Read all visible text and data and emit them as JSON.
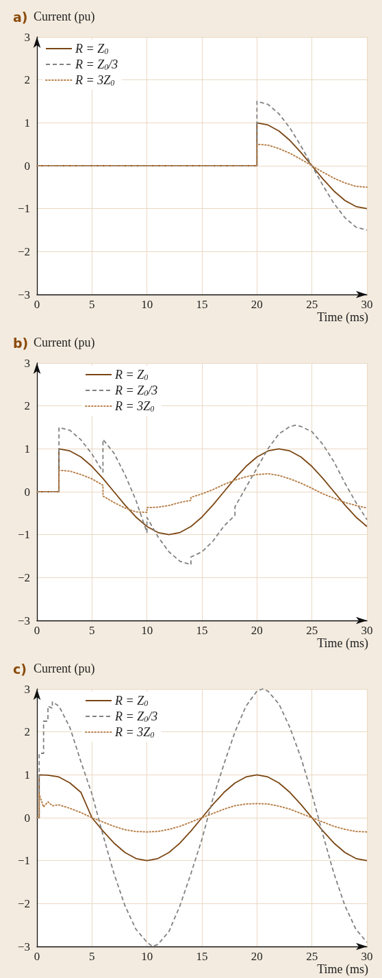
{
  "chart_data": [
    {
      "type": "line",
      "title": "a)",
      "ylabel": "Current (pu)",
      "xlabel": "Time (ms)",
      "xlim": [
        0,
        30
      ],
      "xticks": [
        0,
        5,
        10,
        15,
        20,
        25,
        30
      ],
      "ylim": [
        -3,
        3
      ],
      "yticks": [
        -3,
        -2,
        -1,
        0,
        1,
        2,
        3
      ],
      "grid": true,
      "legend": "top left",
      "marker": "none",
      "series": [
        {
          "name": "R = Z$_{0}$",
          "color": "#7a4512",
          "line_style": "solid",
          "x": [
            0,
            20,
            20,
            21,
            22,
            23,
            24,
            25,
            26,
            27,
            28,
            29,
            30
          ],
          "values": [
            0,
            0,
            1,
            0.95,
            0.81,
            0.59,
            0.31,
            0,
            -0.31,
            -0.59,
            -0.81,
            -0.95,
            -1
          ]
        },
        {
          "name": "R = Z$_{0}$/3",
          "color": "#808080",
          "line_style": "dashed",
          "x": [
            0,
            20,
            20,
            21,
            22,
            23,
            24,
            25,
            26,
            27,
            28,
            29,
            30
          ],
          "values": [
            0,
            0,
            1.5,
            1.43,
            1.21,
            0.88,
            0.46,
            0,
            -0.46,
            -0.88,
            -1.21,
            -1.43,
            -1.5
          ]
        },
        {
          "name": "R = 3Z$_{0}$",
          "color": "#b8804a",
          "line_style": "dotted",
          "x": [
            0,
            20,
            20,
            21,
            22,
            23,
            24,
            25,
            26,
            27,
            28,
            29,
            30
          ],
          "values": [
            0,
            0,
            0.5,
            0.48,
            0.4,
            0.29,
            0.15,
            0,
            -0.15,
            -0.29,
            -0.4,
            -0.48,
            -0.5
          ]
        }
      ]
    },
    {
      "type": "line",
      "title": "b)",
      "ylabel": "Current (pu)",
      "xlabel": "Time (ms)",
      "xlim": [
        0,
        30
      ],
      "xticks": [
        0,
        5,
        10,
        15,
        20,
        25,
        30
      ],
      "ylim": [
        -3,
        3
      ],
      "yticks": [
        -3,
        -2,
        -1,
        0,
        1,
        2,
        3
      ],
      "grid": true,
      "legend": "top left",
      "marker": "none",
      "series": [
        {
          "name": "R = Z$_{0}$",
          "color": "#7a4512",
          "line_style": "solid",
          "x": [
            0,
            2,
            2,
            3,
            4,
            5,
            6,
            7,
            8,
            9,
            10,
            11,
            12,
            13,
            14,
            15,
            16,
            17,
            18,
            19,
            20,
            21,
            22,
            23,
            24,
            25,
            26,
            27,
            28,
            29,
            30
          ],
          "values": [
            0,
            0,
            1,
            0.95,
            0.81,
            0.59,
            0.31,
            0,
            -0.31,
            -0.59,
            -0.81,
            -0.95,
            -1,
            -0.95,
            -0.81,
            -0.59,
            -0.31,
            0,
            0.31,
            0.59,
            0.81,
            0.95,
            1,
            0.95,
            0.81,
            0.59,
            0.31,
            0,
            -0.31,
            -0.59,
            -0.81
          ]
        },
        {
          "name": "R = Z$_{0}$/3",
          "color": "#808080",
          "line_style": "dashed",
          "x": [
            0,
            2,
            2,
            3,
            4,
            5,
            6,
            6,
            7,
            8,
            9,
            10,
            10,
            11,
            12,
            13,
            14,
            14,
            15,
            16,
            17,
            18,
            18,
            19,
            20,
            21,
            22,
            23,
            23.5,
            24,
            25,
            26,
            27,
            28,
            29,
            30
          ],
          "values": [
            0,
            0,
            1.5,
            1.43,
            1.21,
            0.88,
            0.46,
            1.22,
            0.9,
            0.4,
            -0.2,
            -0.95,
            -0.6,
            -1.05,
            -1.4,
            -1.62,
            -1.7,
            -1.52,
            -1.4,
            -1.15,
            -0.8,
            -0.55,
            -0.35,
            0.1,
            0.55,
            1,
            1.35,
            1.52,
            1.55,
            1.52,
            1.4,
            1.1,
            0.7,
            0.2,
            -0.25,
            -0.65
          ]
        },
        {
          "name": "R = 3Z$_{0}$",
          "color": "#b8804a",
          "line_style": "dotted",
          "x": [
            0,
            2,
            2,
            3,
            4,
            5,
            6,
            6,
            7,
            8,
            9,
            10,
            10,
            11,
            12,
            13,
            14,
            14,
            15,
            16,
            17,
            18,
            19,
            20,
            21,
            22,
            23,
            24,
            25,
            26,
            27,
            28,
            29,
            30
          ],
          "values": [
            0,
            0,
            0.5,
            0.48,
            0.4,
            0.3,
            0.15,
            -0.1,
            -0.25,
            -0.38,
            -0.47,
            -0.48,
            -0.37,
            -0.36,
            -0.32,
            -0.25,
            -0.2,
            -0.13,
            -0.05,
            0.05,
            0.17,
            0.27,
            0.35,
            0.4,
            0.42,
            0.38,
            0.3,
            0.2,
            0.08,
            -0.05,
            -0.15,
            -0.25,
            -0.32,
            -0.38
          ]
        }
      ]
    },
    {
      "type": "line",
      "title": "c)",
      "ylabel": "Current (pu)",
      "xlabel": "Time (ms)",
      "xlim": [
        0,
        30
      ],
      "xticks": [
        0,
        5,
        10,
        15,
        20,
        25,
        30
      ],
      "ylim": [
        -3,
        3
      ],
      "yticks": [
        -3,
        -2,
        -1,
        0,
        1,
        2,
        3
      ],
      "grid": true,
      "legend": "top left",
      "marker": "none",
      "series": [
        {
          "name": "R = Z$_{0}$",
          "color": "#7a4512",
          "line_style": "solid",
          "x": [
            0,
            0.2,
            0.2,
            1,
            2,
            3,
            4,
            5,
            6,
            7,
            8,
            9,
            10,
            11,
            12,
            13,
            14,
            15,
            16,
            17,
            18,
            19,
            20,
            21,
            22,
            23,
            24,
            25,
            26,
            27,
            28,
            29,
            30
          ],
          "values": [
            0,
            0,
            1,
            0.99,
            0.95,
            0.81,
            0.59,
            0,
            -0.31,
            -0.59,
            -0.81,
            -0.95,
            -1,
            -0.95,
            -0.81,
            -0.59,
            -0.31,
            0,
            0.31,
            0.59,
            0.81,
            0.95,
            1,
            0.95,
            0.81,
            0.59,
            0.31,
            0,
            -0.31,
            -0.59,
            -0.81,
            -0.95,
            -1
          ]
        },
        {
          "name": "R = Z$_{0}$/3",
          "color": "#808080",
          "line_style": "dashed",
          "x": [
            0,
            0.2,
            0.2,
            0.6,
            0.6,
            1,
            1,
            1.4,
            1.4,
            2,
            3,
            4,
            5,
            6,
            7,
            8,
            9,
            10,
            10.5,
            11,
            12,
            13,
            14,
            15,
            16,
            17,
            18,
            19,
            20,
            20.5,
            21,
            22,
            23,
            24,
            25,
            26,
            27,
            28,
            29,
            30
          ],
          "values": [
            0,
            0,
            1.5,
            1.5,
            2.25,
            2.25,
            2.6,
            2.55,
            2.7,
            2.6,
            2.1,
            1.3,
            0.55,
            -0.4,
            -1.3,
            -2.05,
            -2.6,
            -2.9,
            -3,
            -2.95,
            -2.65,
            -2.05,
            -1.3,
            -0.5,
            0.45,
            1.25,
            2,
            2.6,
            2.95,
            3,
            2.95,
            2.65,
            2.1,
            1.4,
            0.55,
            -0.4,
            -1.3,
            -2.05,
            -2.6,
            -2.9
          ]
        },
        {
          "name": "R = 3Z$_{0}$",
          "color": "#b8804a",
          "line_style": "dotted",
          "x": [
            0,
            0.2,
            0.2,
            0.6,
            1,
            1.4,
            2,
            3,
            4,
            5,
            6,
            7,
            8,
            9,
            10,
            11,
            12,
            13,
            14,
            15,
            16,
            17,
            18,
            19,
            20,
            21,
            22,
            23,
            24,
            25,
            26,
            27,
            28,
            29,
            30
          ],
          "values": [
            0,
            0,
            0.55,
            0.25,
            0.37,
            0.28,
            0.3,
            0.22,
            0.12,
            0,
            -0.1,
            -0.2,
            -0.28,
            -0.32,
            -0.33,
            -0.32,
            -0.27,
            -0.2,
            -0.1,
            0,
            0.1,
            0.2,
            0.28,
            0.32,
            0.33,
            0.32,
            0.27,
            0.2,
            0.1,
            0,
            -0.1,
            -0.2,
            -0.27,
            -0.32,
            -0.33
          ]
        }
      ]
    }
  ]
}
